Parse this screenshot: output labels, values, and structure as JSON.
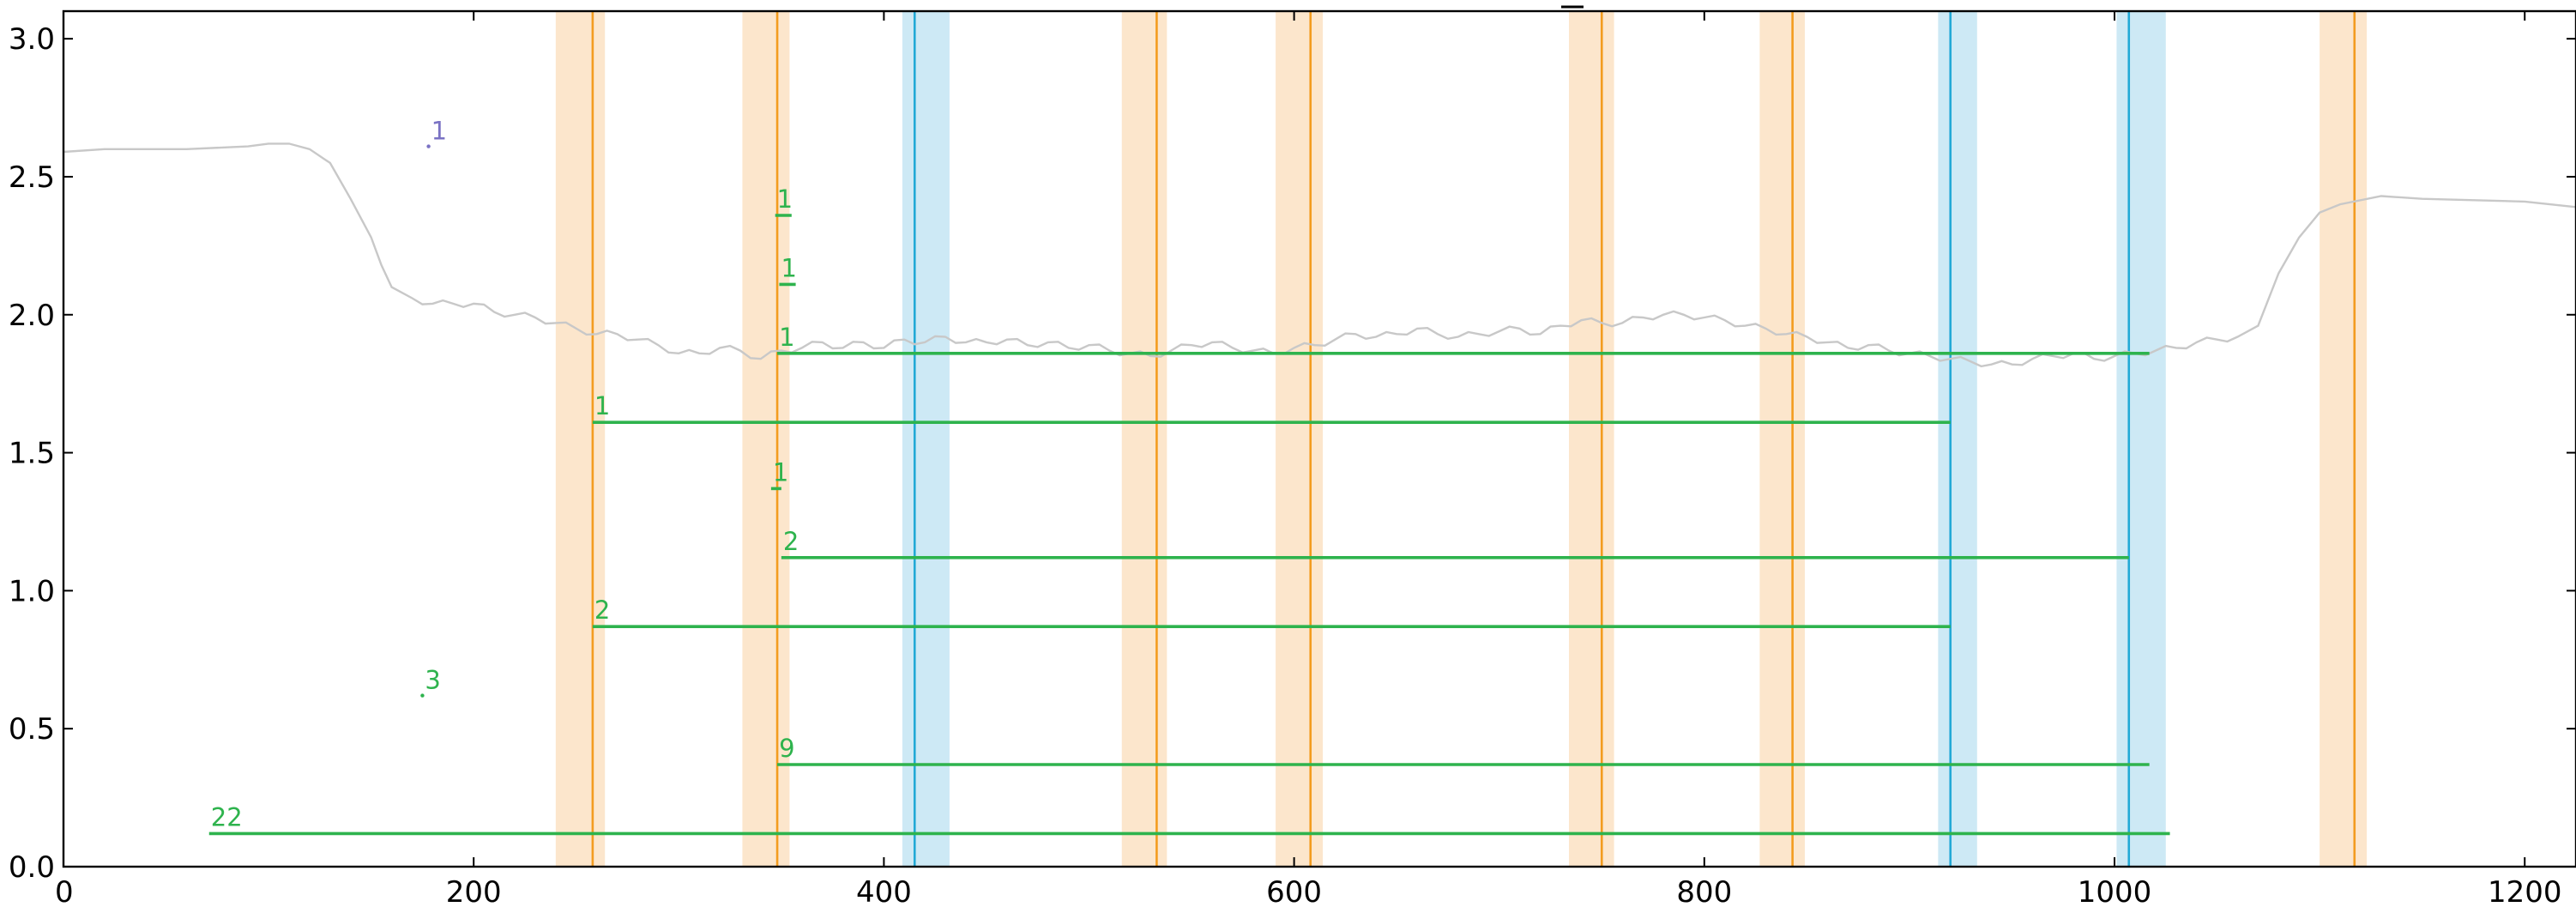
{
  "chart_data": {
    "type": "line",
    "title": "",
    "xlabel": "",
    "ylabel": "",
    "xlim": [
      0,
      1225
    ],
    "ylim": [
      0,
      3.1
    ],
    "grid": false,
    "x_ticks": [
      0,
      200,
      400,
      600,
      800,
      1000,
      1200
    ],
    "y_ticks": [
      0.0,
      0.5,
      1.0,
      1.5,
      2.0,
      2.5,
      3.0
    ],
    "x_tick_labels": [
      "0",
      "200",
      "400",
      "600",
      "800",
      "1000",
      "1200"
    ],
    "y_tick_labels": [
      "0.0",
      "0.5",
      "1.0",
      "1.5",
      "2.0",
      "2.5",
      "3.0"
    ],
    "colors": {
      "signal": "#c8c8c8",
      "orange_line": "#f39c1f",
      "orange_band": "#fce6cc",
      "blue_line": "#22a9d6",
      "blue_band": "#cde9f5",
      "segment": "#2eb34d",
      "purple": "#7a72c4"
    },
    "signal": {
      "x": [
        0,
        20,
        60,
        90,
        100,
        110,
        120,
        130,
        140,
        150,
        155,
        160,
        170,
        180,
        190,
        200,
        210,
        220,
        230,
        240,
        250,
        260,
        270,
        280,
        290,
        300,
        310,
        320,
        330,
        340,
        350,
        360,
        370,
        380,
        390,
        400,
        410,
        420,
        430,
        440,
        450,
        460,
        470,
        480,
        490,
        500,
        510,
        520,
        530,
        540,
        550,
        560,
        570,
        580,
        590,
        600,
        610,
        620,
        630,
        640,
        650,
        660,
        670,
        680,
        690,
        700,
        710,
        720,
        730,
        740,
        750,
        760,
        770,
        780,
        790,
        800,
        810,
        820,
        830,
        840,
        850,
        860,
        870,
        880,
        890,
        900,
        910,
        920,
        930,
        940,
        950,
        960,
        970,
        980,
        990,
        1000,
        1010,
        1020,
        1030,
        1040,
        1050,
        1060,
        1070,
        1080,
        1090,
        1100,
        1110,
        1130,
        1150,
        1200,
        1225
      ],
      "y": [
        2.59,
        2.6,
        2.6,
        2.61,
        2.62,
        2.62,
        2.6,
        2.55,
        2.42,
        2.28,
        2.18,
        2.1,
        2.06,
        2.04,
        2.04,
        2.04,
        2.01,
        2.0,
        1.99,
        1.97,
        1.95,
        1.93,
        1.93,
        1.91,
        1.89,
        1.86,
        1.86,
        1.88,
        1.87,
        1.84,
        1.87,
        1.88,
        1.9,
        1.88,
        1.9,
        1.88,
        1.91,
        1.9,
        1.92,
        1.9,
        1.9,
        1.91,
        1.89,
        1.9,
        1.88,
        1.89,
        1.87,
        1.86,
        1.85,
        1.87,
        1.89,
        1.9,
        1.88,
        1.87,
        1.86,
        1.88,
        1.89,
        1.91,
        1.93,
        1.92,
        1.93,
        1.95,
        1.93,
        1.92,
        1.93,
        1.94,
        1.95,
        1.93,
        1.96,
        1.98,
        1.97,
        1.97,
        1.99,
        2.0,
        2.0,
        1.99,
        1.98,
        1.96,
        1.95,
        1.93,
        1.92,
        1.9,
        1.88,
        1.89,
        1.87,
        1.86,
        1.85,
        1.84,
        1.83,
        1.82,
        1.82,
        1.84,
        1.85,
        1.86,
        1.84,
        1.85,
        1.86,
        1.87,
        1.88,
        1.9,
        1.91,
        1.92,
        1.96,
        2.15,
        2.28,
        2.37,
        2.4,
        2.43,
        2.42,
        2.41,
        2.39
      ]
    },
    "orange_bands": [
      {
        "start": 240,
        "end": 264,
        "center": 258
      },
      {
        "start": 331,
        "end": 354,
        "center": 348
      },
      {
        "start": 516,
        "end": 538,
        "center": 533
      },
      {
        "start": 591,
        "end": 614,
        "center": 608
      },
      {
        "start": 734,
        "end": 756,
        "center": 750
      },
      {
        "start": 827,
        "end": 849,
        "center": 843
      },
      {
        "start": 1100,
        "end": 1123,
        "center": 1117
      }
    ],
    "blue_bands": [
      {
        "start": 409,
        "end": 432,
        "center": 415
      },
      {
        "start": 914,
        "end": 933,
        "center": 920
      },
      {
        "start": 1001,
        "end": 1025,
        "center": 1007
      }
    ],
    "segments": [
      {
        "x0": 347,
        "x1": 355,
        "y": 2.36,
        "label": "1"
      },
      {
        "x0": 349,
        "x1": 357,
        "y": 2.11,
        "label": "1"
      },
      {
        "x0": 348,
        "x1": 1017,
        "y": 1.86,
        "label": "1"
      },
      {
        "x0": 258,
        "x1": 920,
        "y": 1.61,
        "label": "1"
      },
      {
        "x0": 345,
        "x1": 350,
        "y": 1.37,
        "label": "1"
      },
      {
        "x0": 350,
        "x1": 1007,
        "y": 1.12,
        "label": "2"
      },
      {
        "x0": 258,
        "x1": 920,
        "y": 0.87,
        "label": "2"
      },
      {
        "x0": 348,
        "x1": 1017,
        "y": 0.37,
        "label": "9"
      },
      {
        "x0": 71,
        "x1": 1027,
        "y": 0.12,
        "label": "22"
      }
    ],
    "points": [
      {
        "x": 178,
        "y": 2.61,
        "label": "1",
        "color": "purple"
      },
      {
        "x": 175,
        "y": 0.62,
        "label": "3",
        "color": "segment"
      }
    ]
  }
}
